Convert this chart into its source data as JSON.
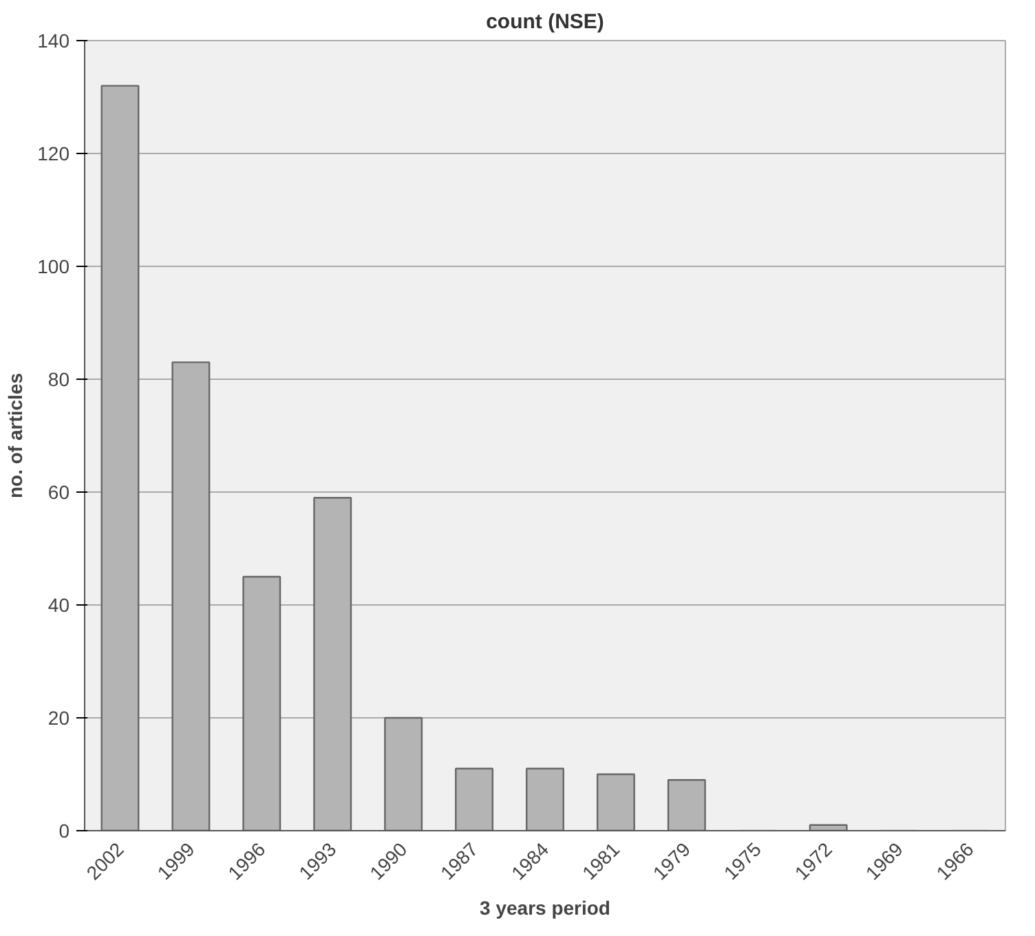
{
  "chart_data": {
    "type": "bar",
    "title": "count (NSE)",
    "xlabel": "3 years period",
    "ylabel": "no. of articles",
    "categories": [
      "2002",
      "1999",
      "1996",
      "1993",
      "1990",
      "1987",
      "1984",
      "1981",
      "1979",
      "1975",
      "1972",
      "1969",
      "1966"
    ],
    "values": [
      132,
      83,
      45,
      59,
      20,
      11,
      11,
      10,
      9,
      0,
      1,
      0,
      0
    ],
    "color": "#b4b4b4",
    "ylim": [
      0,
      140
    ],
    "yticks": [
      0,
      20,
      40,
      60,
      80,
      100,
      120,
      140
    ],
    "grid": "y"
  }
}
